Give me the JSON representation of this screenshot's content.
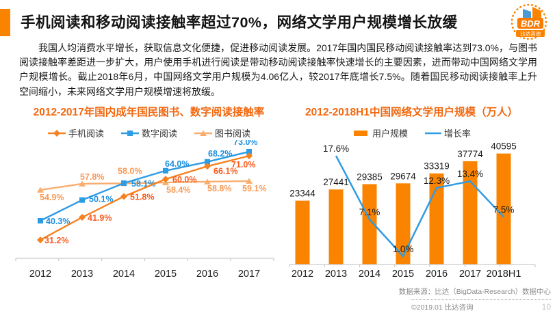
{
  "page": {
    "title": "手机阅读和移动阅读接触率超过70%，网络文学用户规模增长放缓",
    "intro": "我国人均消费水平增长，获取信息文化便捷，促进移动阅读发展。2017年国内国民移动阅读接触率达到73.0%，与图书阅读接触率差距进一步扩大，用户使用手机进行阅读是带动移动阅读接触率快速增长的主要因素，进而带动中国网络文学用户规模增长。截止2018年6月，中国网络文学用户规模为4.06亿人，较2017年底增长7.5%。随着国民移动阅读接触率上升空间缩小，未来网络文学用户规模增速将放缓。"
  },
  "logo": {
    "abbr": "BDR",
    "name": "比达咨询"
  },
  "colors": {
    "accent_orange": "#FA8400",
    "title_orange": "#F2680F",
    "blue": "#2E9BE5",
    "axis_gray": "#C9C9C9",
    "label_black": "#1A1A1A"
  },
  "chart_data": [
    {
      "type": "line",
      "title": "2012-2017年国内成年国民图书、数字阅读接触率",
      "categories": [
        "2012",
        "2013",
        "2014",
        "2015",
        "2016",
        "2017"
      ],
      "unit": "%",
      "grid": false,
      "legend_position": "top",
      "ylim": [
        22,
        80
      ],
      "series": [
        {
          "name": "手机阅读",
          "marker": "diamond",
          "color": "#F58220",
          "label_color": "#F95B1D",
          "values": [
            31.2,
            41.9,
            51.8,
            60.0,
            66.1,
            71.0
          ]
        },
        {
          "name": "数字阅读",
          "marker": "square",
          "color": "#2E9BE5",
          "label_color": "#1E90E0",
          "values": [
            40.3,
            50.1,
            58.1,
            64.0,
            68.2,
            73.0
          ]
        },
        {
          "name": "图书阅读",
          "marker": "triangle",
          "color": "#F9AE6F",
          "label_color": "#F89A57",
          "values": [
            54.9,
            57.8,
            58.0,
            58.4,
            58.8,
            59.1
          ]
        }
      ]
    },
    {
      "type": "bar+line",
      "title": "2012-2018H1中国网络文学用户规模（万人）",
      "categories": [
        "2012",
        "2013",
        "2014",
        "2015",
        "2016",
        "2017",
        "2018H1"
      ],
      "grid": false,
      "legend_position": "top",
      "bar_series": {
        "name": "用户规模",
        "color": "#FA8400",
        "unit": "万人",
        "values": [
          23344,
          27441,
          29385,
          29674,
          33319,
          37774,
          40595
        ]
      },
      "line_series": {
        "name": "增长率",
        "color": "#2E9BE5",
        "unit": "%",
        "values": [
          null,
          17.6,
          7.1,
          1.0,
          12.3,
          13.4,
          7.5
        ]
      }
    }
  ],
  "footer": {
    "source": "数据来源：比达（BigData-Research）数据中心",
    "copyright": "©2019.01 比达咨询",
    "page_number": "10"
  }
}
